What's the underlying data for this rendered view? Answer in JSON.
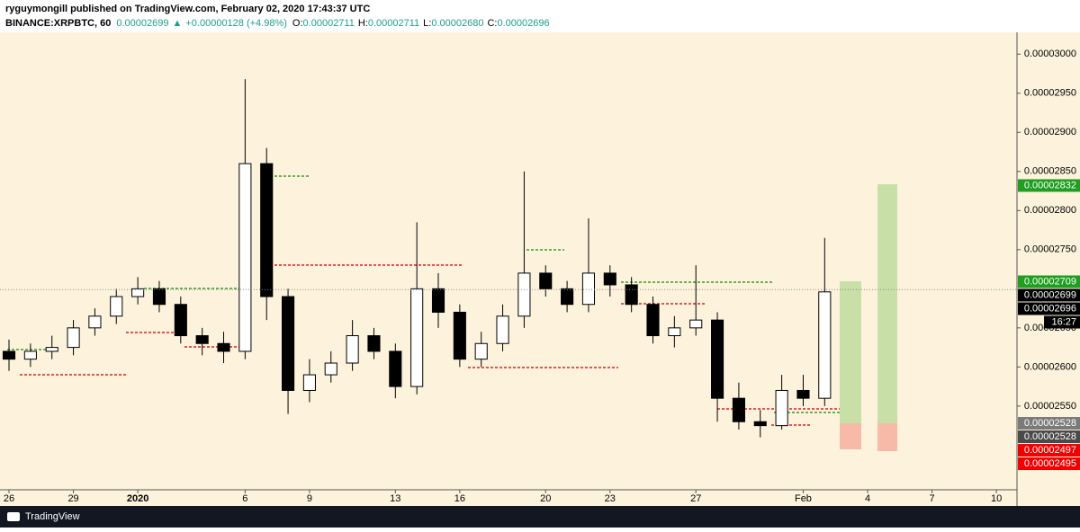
{
  "header": {
    "publisher": "ryguymongill published on TradingView.com, February 02, 2020 17:43:37 UTC",
    "symbol": "BINANCE:XRPBTC, 60",
    "last": "0.00002699",
    "arrow": "▲",
    "change": "+0.00000128 (+4.98%)",
    "o_label": "O:",
    "o": "0.00002711",
    "h_label": "H:",
    "h": "0.00002711",
    "l_label": "L:",
    "l": "0.00002680",
    "c_label": "C:",
    "c": "0.00002696"
  },
  "chart_data": {
    "type": "candlestick",
    "x": [
      0,
      1,
      2,
      3,
      4,
      5,
      6,
      7,
      8,
      9,
      10,
      11,
      12,
      13,
      14,
      15,
      16,
      17,
      18,
      19,
      20,
      21,
      22,
      23,
      24,
      25,
      26,
      27,
      28,
      29,
      30,
      31,
      32,
      33,
      34,
      35,
      36,
      37,
      38
    ],
    "open": [
      2.62e-05,
      2.61e-05,
      2.62e-05,
      2.625e-05,
      2.65e-05,
      2.665e-05,
      2.69e-05,
      2.7e-05,
      2.68e-05,
      2.64e-05,
      2.63e-05,
      2.62e-05,
      2.86e-05,
      2.69e-05,
      2.57e-05,
      2.59e-05,
      2.605e-05,
      2.64e-05,
      2.62e-05,
      2.575e-05,
      2.7e-05,
      2.67e-05,
      2.61e-05,
      2.63e-05,
      2.665e-05,
      2.72e-05,
      2.7e-05,
      2.68e-05,
      2.72e-05,
      2.705e-05,
      2.68e-05,
      2.64e-05,
      2.65e-05,
      2.66e-05,
      2.56e-05,
      2.53e-05,
      2.525e-05,
      2.57e-05,
      2.56e-05
    ],
    "high": [
      2.635e-05,
      2.63e-05,
      2.64e-05,
      2.66e-05,
      2.675e-05,
      2.7e-05,
      2.715e-05,
      2.71e-05,
      2.69e-05,
      2.65e-05,
      2.645e-05,
      2.968e-05,
      2.88e-05,
      2.7e-05,
      2.61e-05,
      2.62e-05,
      2.66e-05,
      2.65e-05,
      2.63e-05,
      2.785e-05,
      2.72e-05,
      2.68e-05,
      2.645e-05,
      2.68e-05,
      2.85e-05,
      2.73e-05,
      2.71e-05,
      2.79e-05,
      2.73e-05,
      2.715e-05,
      2.69e-05,
      2.665e-05,
      2.73e-05,
      2.67e-05,
      2.58e-05,
      2.545e-05,
      2.59e-05,
      2.59e-05,
      2.765e-05
    ],
    "low": [
      2.595e-05,
      2.6e-05,
      2.61e-05,
      2.615e-05,
      2.64e-05,
      2.655e-05,
      2.68e-05,
      2.67e-05,
      2.63e-05,
      2.615e-05,
      2.605e-05,
      2.61e-05,
      2.66e-05,
      2.54e-05,
      2.555e-05,
      2.58e-05,
      2.595e-05,
      2.61e-05,
      2.56e-05,
      2.565e-05,
      2.65e-05,
      2.6e-05,
      2.6e-05,
      2.62e-05,
      2.65e-05,
      2.69e-05,
      2.67e-05,
      2.67e-05,
      2.69e-05,
      2.67e-05,
      2.63e-05,
      2.625e-05,
      2.64e-05,
      2.53e-05,
      2.52e-05,
      2.51e-05,
      2.52e-05,
      2.55e-05,
      2.55e-05
    ],
    "close": [
      2.61e-05,
      2.62e-05,
      2.625e-05,
      2.65e-05,
      2.665e-05,
      2.69e-05,
      2.7e-05,
      2.68e-05,
      2.64e-05,
      2.63e-05,
      2.62e-05,
      2.86e-05,
      2.69e-05,
      2.57e-05,
      2.59e-05,
      2.605e-05,
      2.64e-05,
      2.62e-05,
      2.575e-05,
      2.7e-05,
      2.67e-05,
      2.61e-05,
      2.63e-05,
      2.665e-05,
      2.72e-05,
      2.7e-05,
      2.68e-05,
      2.72e-05,
      2.705e-05,
      2.68e-05,
      2.64e-05,
      2.65e-05,
      2.66e-05,
      2.56e-05,
      2.53e-05,
      2.525e-05,
      2.57e-05,
      2.56e-05,
      2.696e-05
    ],
    "up_color": "#ffffff",
    "down_color": "#000000",
    "xlim": [
      -0.42,
      46.96
    ],
    "ylim": [
      2.443e-05,
      3.029e-05
    ],
    "xticks": [
      {
        "value": 0,
        "label": "26"
      },
      {
        "value": 3,
        "label": "29"
      },
      {
        "value": 6,
        "label": "2020"
      },
      {
        "value": 11,
        "label": "6"
      },
      {
        "value": 14,
        "label": "9"
      },
      {
        "value": 18,
        "label": "13"
      },
      {
        "value": 21,
        "label": "16"
      },
      {
        "value": 25,
        "label": "20"
      },
      {
        "value": 28,
        "label": "23"
      },
      {
        "value": 32,
        "label": "27"
      },
      {
        "value": 37,
        "label": "Feb"
      },
      {
        "value": 40,
        "label": "4"
      },
      {
        "value": 43,
        "label": "7"
      },
      {
        "value": 46,
        "label": "10"
      }
    ],
    "yticks": [
      {
        "value": 3e-05,
        "label": "0.00003000"
      },
      {
        "value": 2.95e-05,
        "label": "0.00002950"
      },
      {
        "value": 2.9e-05,
        "label": "0.00002900"
      },
      {
        "value": 2.85e-05,
        "label": "0.00002850"
      },
      {
        "value": 2.8e-05,
        "label": "0.00002800"
      },
      {
        "value": 2.75e-05,
        "label": "0.00002750"
      },
      {
        "value": 2.65e-05,
        "label": "0.00002650"
      },
      {
        "value": 2.6e-05,
        "label": "0.00002600"
      },
      {
        "value": 2.55e-05,
        "label": "0.00002550"
      }
    ],
    "price_tags": [
      {
        "value": 2.832e-05,
        "label": "0.00002832",
        "color": "#1f9e1f"
      },
      {
        "value": 2.709e-05,
        "label": "0.00002709",
        "color": "#1f9e1f"
      },
      {
        "value": 2.699e-05,
        "label": "0.00002699",
        "color": "#000000"
      },
      {
        "value": 2.696e-05,
        "label": "0.00002696",
        "color": "#000000"
      },
      {
        "value": 2.528e-05,
        "label": "0.00002528",
        "color": "#7a7a7a"
      },
      {
        "value": 2.528e-05,
        "label": "0.00002528",
        "color": "#4a4a4a"
      },
      {
        "value": 2.497e-05,
        "label": "0.00002497",
        "color": "#f20000"
      },
      {
        "value": 2.495e-05,
        "label": "0.00002495",
        "color": "#f20000"
      }
    ],
    "countdown": "16:27"
  },
  "footer": {
    "brand": "TradingView"
  }
}
